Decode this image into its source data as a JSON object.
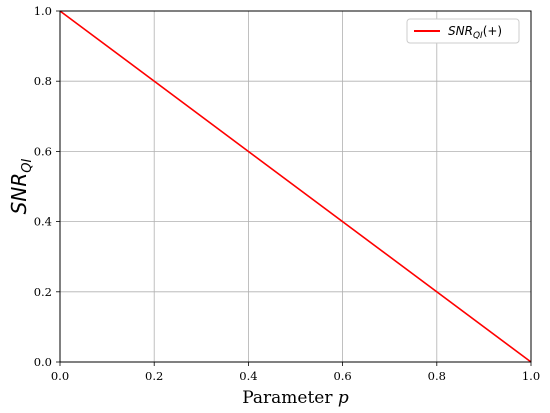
{
  "chart_data": {
    "type": "line",
    "title": "",
    "xlabel": {
      "text": "Parameter ",
      "variable": "p"
    },
    "ylabel": {
      "main": "SNR",
      "subscript": "QI"
    },
    "xlim": [
      0.0,
      1.0
    ],
    "ylim": [
      0.0,
      1.0
    ],
    "xticks": [
      0.0,
      0.2,
      0.4,
      0.6,
      0.8,
      1.0
    ],
    "yticks": [
      0.0,
      0.2,
      0.4,
      0.6,
      0.8,
      1.0
    ],
    "xtick_labels": [
      "0.0",
      "0.2",
      "0.4",
      "0.6",
      "0.8",
      "1.0"
    ],
    "ytick_labels": [
      "0.0",
      "0.2",
      "0.4",
      "0.6",
      "0.8",
      "1.0"
    ],
    "grid": true,
    "legend_position": "top-right",
    "series": [
      {
        "name": "SNR_QI(+)",
        "legend": {
          "main": "SNR",
          "subscript": "QI",
          "suffix": "(+)"
        },
        "color": "#ff0000",
        "x": [
          0.0,
          1.0
        ],
        "y": [
          1.0,
          0.0
        ]
      }
    ]
  }
}
